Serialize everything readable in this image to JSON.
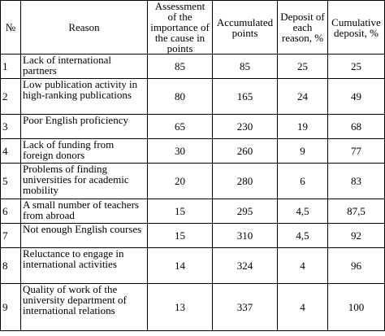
{
  "table": {
    "headers": {
      "number": "№",
      "reason": "Reason",
      "assessment": "Assessment of the importance of the cause in points",
      "accumulated": "Accumulated points",
      "deposit": "Deposit of each reason, %",
      "cumulative": "Cumulative deposit, %"
    },
    "rows": [
      {
        "num": "1",
        "reason": "Lack of international partners",
        "assessment": "85",
        "accumulated": "85",
        "deposit": "25",
        "cumulative": "25"
      },
      {
        "num": "2",
        "reason": "Low publication activity in high-ranking publications",
        "assessment": "80",
        "accumulated": "165",
        "deposit": "24",
        "cumulative": "49"
      },
      {
        "num": "3",
        "reason": "Poor English proficiency",
        "assessment": "65",
        "accumulated": "230",
        "deposit": "19",
        "cumulative": "68"
      },
      {
        "num": "4",
        "reason": "Lack of funding from foreign donors",
        "assessment": "30",
        "accumulated": "260",
        "deposit": "9",
        "cumulative": "77"
      },
      {
        "num": "5",
        "reason": "Problems of finding universities for academic mobility",
        "assessment": "20",
        "accumulated": "280",
        "deposit": "6",
        "cumulative": "83"
      },
      {
        "num": "6",
        "reason": "A small number of teachers from abroad",
        "assessment": "15",
        "accumulated": "295",
        "deposit": "4,5",
        "cumulative": "87,5"
      },
      {
        "num": "7",
        "reason": "Not enough English courses",
        "assessment": "15",
        "accumulated": "310",
        "deposit": "4,5",
        "cumulative": "92"
      },
      {
        "num": "8",
        "reason": "Reluctance to engage in international activities",
        "assessment": "14",
        "accumulated": "324",
        "deposit": "4",
        "cumulative": "96"
      },
      {
        "num": "9",
        "reason": "Quality of work of the university department of international relations",
        "assessment": "13",
        "accumulated": "337",
        "deposit": "4",
        "cumulative": "100"
      }
    ]
  }
}
